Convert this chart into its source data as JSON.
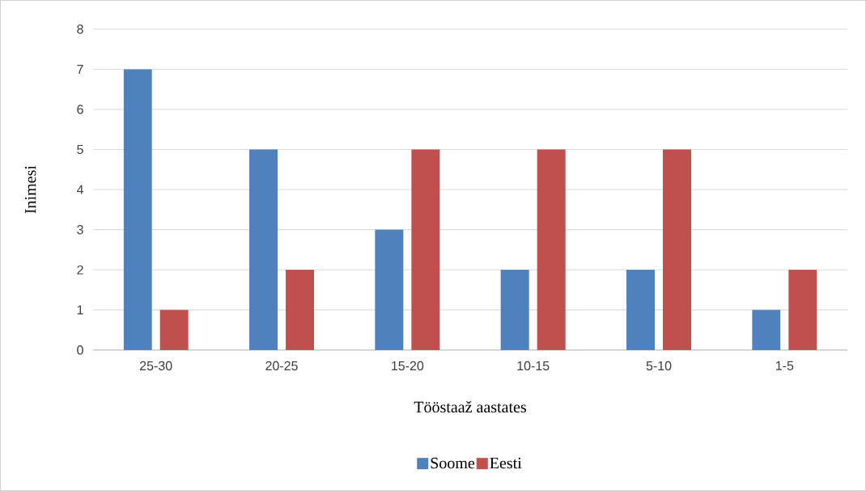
{
  "chart_data": {
    "type": "bar",
    "xlabel": "Tööstaaž aastates",
    "ylabel": "Inimesi",
    "categories": [
      "25-30",
      "20-25",
      "15-20",
      "10-15",
      "5-10",
      "1-5"
    ],
    "series": [
      {
        "name": "Soome",
        "color": "#4f81bd",
        "values": [
          7,
          5,
          3,
          2,
          2,
          1
        ]
      },
      {
        "name": "Eesti",
        "color": "#c0504d",
        "values": [
          1,
          2,
          5,
          5,
          5,
          2
        ]
      }
    ],
    "ylim": [
      0,
      8
    ],
    "yticks": [
      0,
      1,
      2,
      3,
      4,
      5,
      6,
      7,
      8
    ],
    "grid": "y",
    "legend": "bottom"
  }
}
